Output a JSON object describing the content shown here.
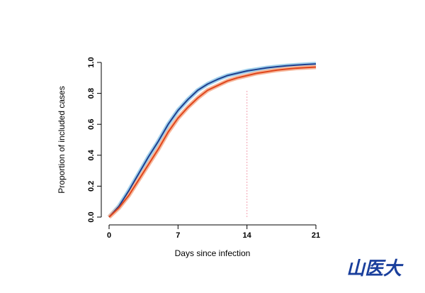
{
  "chart_data": {
    "type": "line",
    "x_label": "Days since infection",
    "y_label": "Proportion of included cases",
    "x": [
      0,
      1,
      2,
      3,
      4,
      5,
      6,
      7,
      8,
      9,
      10,
      11,
      12,
      13,
      14,
      15,
      16,
      17,
      18,
      19,
      20,
      21
    ],
    "series": [
      {
        "color": "#1f3f8f",
        "band_color": "#9fd0ec",
        "values": [
          0,
          0.07,
          0.17,
          0.28,
          0.39,
          0.49,
          0.6,
          0.69,
          0.76,
          0.82,
          0.86,
          0.89,
          0.915,
          0.93,
          0.945,
          0.955,
          0.965,
          0.972,
          0.978,
          0.983,
          0.987,
          0.99
        ]
      },
      {
        "color": "#e0451b",
        "band_color": "#f6b79b",
        "values": [
          0,
          0.06,
          0.14,
          0.24,
          0.34,
          0.44,
          0.55,
          0.64,
          0.71,
          0.77,
          0.82,
          0.85,
          0.88,
          0.9,
          0.915,
          0.93,
          0.94,
          0.95,
          0.957,
          0.963,
          0.967,
          0.97
        ]
      }
    ],
    "xlim": [
      0,
      21
    ],
    "xticks": [
      0,
      7,
      14,
      21
    ],
    "ylim": [
      0,
      1
    ],
    "yticks": [
      {
        "value": 0,
        "label": "0.0"
      },
      0.2,
      0.4,
      0.6,
      0.8,
      {
        "value": 1,
        "label": "1.0"
      }
    ],
    "vline": 14,
    "vline_color": "#f2a0b0"
  },
  "watermark": "山医大"
}
